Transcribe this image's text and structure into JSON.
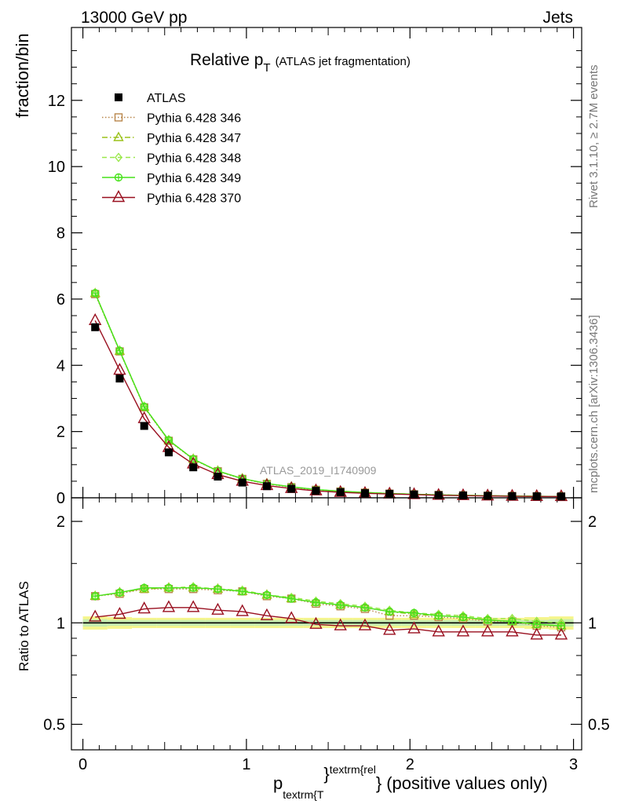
{
  "header": {
    "energy_label": "13000 GeV pp",
    "process_label": "Jets"
  },
  "side_labels": {
    "rivet": "Rivet 3.1.10, ≥ 2.7M events",
    "mcplots": "mcplots.cern.ch [arXiv:1306.3436]"
  },
  "watermark": "ATLAS_2019_I1740909",
  "title": {
    "main": "Relative p",
    "sub": "T",
    "rest": "(ATLAS jet fragmentation)"
  },
  "axes": {
    "ylabel_top": "fraction/bin",
    "ylabel_bottom": "Ratio to ATLAS",
    "xlabel_main": "p",
    "xlabel_sub": "textrm{T",
    "xlabel_brace": "}",
    "xlabel_sup": "textrm{rel",
    "xlabel_brace2": "}",
    "xlabel_rest": "(positive values only)"
  },
  "colors": {
    "atlas": "#000000",
    "p346": "#b8864b",
    "p347": "#9bc21a",
    "p348": "#99e84a",
    "p349": "#47e21a",
    "p370": "#990f1f",
    "band_outer": "#f5f58c",
    "band_inner": "#c7ecb0"
  },
  "chart_data": {
    "type": "line",
    "x": [
      0.075,
      0.225,
      0.375,
      0.525,
      0.675,
      0.825,
      0.975,
      1.125,
      1.275,
      1.425,
      1.575,
      1.725,
      1.875,
      2.025,
      2.175,
      2.325,
      2.475,
      2.625,
      2.775,
      2.925
    ],
    "x_ticks": [
      0,
      1,
      2,
      3
    ],
    "x_tick_labels": [
      "0",
      "1",
      "2",
      "3"
    ],
    "xlim": [
      -0.07,
      3.05
    ],
    "top_panel": {
      "ylim": [
        0,
        14.2
      ],
      "y_ticks": [
        0,
        2,
        4,
        6,
        8,
        10,
        12
      ],
      "y_tick_labels": [
        "0",
        "2",
        "4",
        "6",
        "8",
        "10",
        "12"
      ],
      "series": [
        {
          "key": "atlas",
          "name": "ATLAS",
          "marker": "square-filled",
          "line": "none",
          "values": [
            5.15,
            3.6,
            2.17,
            1.37,
            0.92,
            0.64,
            0.46,
            0.35,
            0.27,
            0.21,
            0.17,
            0.14,
            0.12,
            0.1,
            0.08,
            0.07,
            0.06,
            0.05,
            0.045,
            0.04
          ]
        },
        {
          "key": "p346",
          "name": "Pythia 6.428 346",
          "marker": "square-open",
          "line": "dotted",
          "values": [
            6.15,
            4.42,
            2.73,
            1.72,
            1.16,
            0.8,
            0.57,
            0.42,
            0.32,
            0.24,
            0.19,
            0.155,
            0.125,
            0.105,
            0.085,
            0.073,
            0.061,
            0.052,
            0.044,
            0.039
          ]
        },
        {
          "key": "p347",
          "name": "Pythia 6.428 347",
          "marker": "triangle-open",
          "line": "dashdot",
          "values": [
            6.17,
            4.43,
            2.74,
            1.73,
            1.17,
            0.81,
            0.58,
            0.43,
            0.33,
            0.25,
            0.19,
            0.16,
            0.13,
            0.107,
            0.087,
            0.074,
            0.062,
            0.053,
            0.045,
            0.04
          ]
        },
        {
          "key": "p348",
          "name": "Pythia 6.428 348",
          "marker": "diamond-open",
          "line": "dashed",
          "values": [
            6.18,
            4.44,
            2.75,
            1.74,
            1.17,
            0.81,
            0.58,
            0.43,
            0.33,
            0.25,
            0.2,
            0.16,
            0.13,
            0.108,
            0.088,
            0.075,
            0.063,
            0.054,
            0.046,
            0.041
          ]
        },
        {
          "key": "p349",
          "name": "Pythia 6.428 349",
          "marker": "circle-cross",
          "line": "solid",
          "values": [
            6.18,
            4.44,
            2.75,
            1.74,
            1.17,
            0.81,
            0.58,
            0.43,
            0.33,
            0.25,
            0.2,
            0.16,
            0.13,
            0.108,
            0.088,
            0.075,
            0.063,
            0.054,
            0.046,
            0.041
          ]
        },
        {
          "key": "p370",
          "name": "Pythia 6.428 370",
          "marker": "triangle-open-large",
          "line": "solid",
          "values": [
            5.35,
            3.85,
            2.39,
            1.52,
            1.02,
            0.7,
            0.5,
            0.37,
            0.28,
            0.21,
            0.165,
            0.135,
            0.115,
            0.097,
            0.076,
            0.066,
            0.056,
            0.047,
            0.041,
            0.037
          ]
        }
      ]
    },
    "ratio_panel": {
      "ylim": [
        0.42,
        2.35
      ],
      "scale": "log",
      "y_ticks": [
        0.5,
        1,
        2
      ],
      "y_tick_labels": [
        "0.5",
        "1",
        "2"
      ],
      "reference": 1.0,
      "band_outer_halfwidth": [
        0.045,
        0.04,
        0.035,
        0.035,
        0.035,
        0.035,
        0.035,
        0.035,
        0.035,
        0.035,
        0.035,
        0.035,
        0.035,
        0.035,
        0.035,
        0.035,
        0.035,
        0.035,
        0.04,
        0.045
      ],
      "band_inner_halfwidth": [
        0.025,
        0.02,
        0.02,
        0.02,
        0.02,
        0.02,
        0.02,
        0.02,
        0.02,
        0.02,
        0.02,
        0.02,
        0.02,
        0.02,
        0.02,
        0.02,
        0.02,
        0.02,
        0.02,
        0.025
      ],
      "series": [
        {
          "key": "p346",
          "values": [
            1.2,
            1.22,
            1.26,
            1.26,
            1.26,
            1.25,
            1.24,
            1.2,
            1.18,
            1.14,
            1.12,
            1.1,
            1.05,
            1.05,
            1.04,
            1.03,
            1.01,
            1.01,
            0.98,
            0.97
          ]
        },
        {
          "key": "p347",
          "values": [
            1.2,
            1.23,
            1.26,
            1.27,
            1.27,
            1.26,
            1.24,
            1.21,
            1.18,
            1.15,
            1.13,
            1.11,
            1.08,
            1.06,
            1.05,
            1.04,
            1.02,
            1.01,
            0.99,
            0.98
          ]
        },
        {
          "key": "p348",
          "values": [
            1.2,
            1.23,
            1.27,
            1.27,
            1.28,
            1.26,
            1.25,
            1.21,
            1.19,
            1.16,
            1.14,
            1.12,
            1.09,
            1.07,
            1.06,
            1.05,
            1.03,
            1.03,
            1.01,
            1.0
          ]
        },
        {
          "key": "p349",
          "values": [
            1.2,
            1.23,
            1.27,
            1.27,
            1.27,
            1.26,
            1.24,
            1.21,
            1.18,
            1.15,
            1.13,
            1.11,
            1.08,
            1.07,
            1.05,
            1.04,
            1.02,
            1.01,
            0.99,
            0.98
          ]
        },
        {
          "key": "p370",
          "values": [
            1.04,
            1.06,
            1.1,
            1.11,
            1.11,
            1.09,
            1.08,
            1.05,
            1.03,
            0.99,
            0.98,
            0.98,
            0.95,
            0.96,
            0.94,
            0.94,
            0.94,
            0.94,
            0.92,
            0.92
          ]
        }
      ]
    }
  }
}
